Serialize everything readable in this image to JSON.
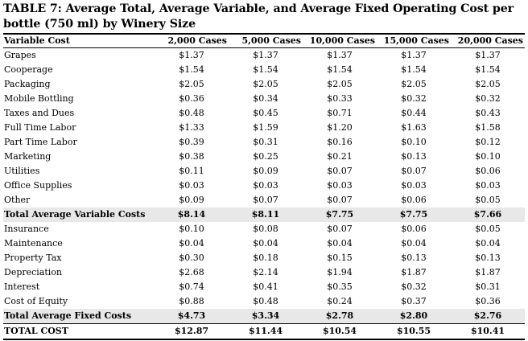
{
  "title": "TABLE 7: Average Total, Average Variable, and Average Fixed Operating Cost per bottle (750 ml) by Winery Size",
  "headers": [
    "Variable Cost",
    "2,000 Cases",
    "5,000 Cases",
    "10,000 Cases",
    "15,000 Cases",
    "20,000 Cases"
  ],
  "rows": [
    {
      "label": "Grapes",
      "values": [
        "$1.37",
        "$1.37",
        "$1.37",
        "$1.37",
        "$1.37"
      ],
      "kind": "row"
    },
    {
      "label": "Cooperage",
      "values": [
        "$1.54",
        "$1.54",
        "$1.54",
        "$1.54",
        "$1.54"
      ],
      "kind": "row"
    },
    {
      "label": "Packaging",
      "values": [
        "$2.05",
        "$2.05",
        "$2.05",
        "$2.05",
        "$2.05"
      ],
      "kind": "row"
    },
    {
      "label": "Mobile Bottling",
      "values": [
        "$0.36",
        "$0.34",
        "$0.33",
        "$0.32",
        "$0.32"
      ],
      "kind": "row"
    },
    {
      "label": "Taxes and Dues",
      "values": [
        "$0.48",
        "$0.45",
        "$0.71",
        "$0.44",
        "$0.43"
      ],
      "kind": "row"
    },
    {
      "label": "Full Time Labor",
      "values": [
        "$1.33",
        "$1.59",
        "$1.20",
        "$1.63",
        "$1.58"
      ],
      "kind": "row"
    },
    {
      "label": "Part Time Labor",
      "values": [
        "$0.39",
        "$0.31",
        "$0.16",
        "$0.10",
        "$0.12"
      ],
      "kind": "row"
    },
    {
      "label": "Marketing",
      "values": [
        "$0.38",
        "$0.25",
        "$0.21",
        "$0.13",
        "$0.10"
      ],
      "kind": "row"
    },
    {
      "label": "Utilities",
      "values": [
        "$0.11",
        "$0.09",
        "$0.07",
        "$0.07",
        "$0.06"
      ],
      "kind": "row"
    },
    {
      "label": "Office Supplies",
      "values": [
        "$0.03",
        "$0.03",
        "$0.03",
        "$0.03",
        "$0.03"
      ],
      "kind": "row"
    },
    {
      "label": "Other",
      "values": [
        "$0.09",
        "$0.07",
        "$0.07",
        "$0.06",
        "$0.05"
      ],
      "kind": "row"
    },
    {
      "label": "Total Average Variable Costs",
      "values": [
        "$8.14",
        "$8.11",
        "$7.75",
        "$7.75",
        "$7.66"
      ],
      "kind": "sub"
    },
    {
      "label": "Insurance",
      "values": [
        "$0.10",
        "$0.08",
        "$0.07",
        "$0.06",
        "$0.05"
      ],
      "kind": "row"
    },
    {
      "label": "Maintenance",
      "values": [
        "$0.04",
        "$0.04",
        "$0.04",
        "$0.04",
        "$0.04"
      ],
      "kind": "row"
    },
    {
      "label": "Property Tax",
      "values": [
        "$0.30",
        "$0.18",
        "$0.15",
        "$0.13",
        "$0.13"
      ],
      "kind": "row"
    },
    {
      "label": "Depreciation",
      "values": [
        "$2.68",
        "$2.14",
        "$1.94",
        "$1.87",
        "$1.87"
      ],
      "kind": "row"
    },
    {
      "label": "Interest",
      "values": [
        "$0.74",
        "$0.41",
        "$0.35",
        "$0.32",
        "$0.31"
      ],
      "kind": "row"
    },
    {
      "label": "Cost of Equity",
      "values": [
        "$0.88",
        "$0.48",
        "$0.24",
        "$0.37",
        "$0.36"
      ],
      "kind": "row"
    },
    {
      "label": "Total Average Fixed Costs",
      "values": [
        "$4.73",
        "$3.34",
        "$2.78",
        "$2.80",
        "$2.76"
      ],
      "kind": "sub"
    },
    {
      "label": "TOTAL COST",
      "values": [
        "$12.87",
        "$11.44",
        "$10.54",
        "$10.55",
        "$10.41"
      ],
      "kind": "total"
    }
  ]
}
